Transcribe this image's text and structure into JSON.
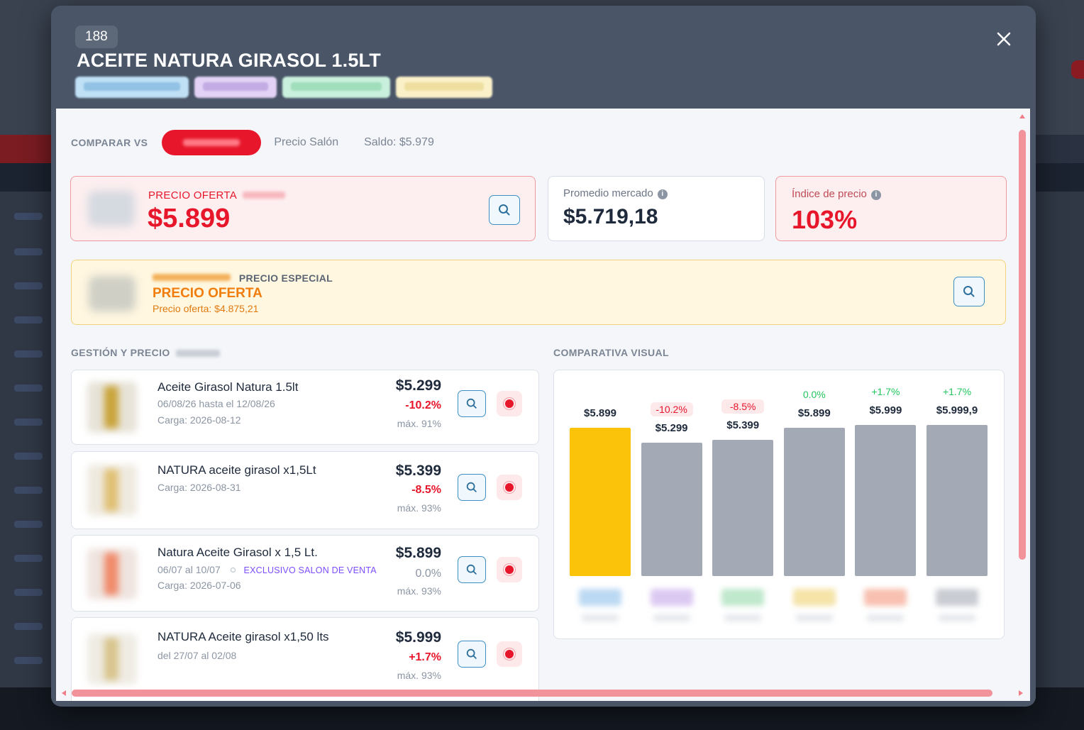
{
  "modal": {
    "id_badge": "188",
    "title": "ACEITE NATURA GIRASOL 1.5LT",
    "tag_colors": [
      "#bfe0f5",
      "#e3d2f5",
      "#c9f0dc",
      "#fbf1c9"
    ],
    "close_icon": "close-icon"
  },
  "compare": {
    "label": "COMPARAR VS",
    "options": [
      "Precio Salón",
      "Saldo: $5.979"
    ],
    "accent": "#e8162b"
  },
  "offer_card": {
    "label": "PRECIO OFERTA",
    "price": "$5.899",
    "icon": "search-icon"
  },
  "market_avg": {
    "label": "Promedio mercado",
    "value": "$5.719,18",
    "icon": "info-icon"
  },
  "price_index": {
    "label": "Índice de precio",
    "value": "103%",
    "icon": "info-icon"
  },
  "special": {
    "label": "PRECIO ESPECIAL",
    "title": "PRECIO OFERTA",
    "subtitle": "Precio oferta: $4.875,21",
    "icon": "search-icon"
  },
  "management": {
    "title": "GESTIÓN Y PRECIO",
    "items": [
      {
        "name": "Aceite Girasol Natura 1.5lt",
        "line1": "06/08/26 hasta el 12/08/26",
        "line2": "Carga: 2026-08-12",
        "price": "$5.299",
        "pct": "-10.2%",
        "max": "máx. 91%",
        "pct_color": "#e8162b",
        "thumb_color": "#c9a43a"
      },
      {
        "name": "NATURA aceite girasol x1,5Lt",
        "line1": "Carga: 2026-08-31",
        "price": "$5.399",
        "pct": "-8.5%",
        "max": "máx. 93%",
        "pct_color": "#e8162b",
        "thumb_color": "#e0c074"
      },
      {
        "name": "Natura Aceite Girasol x 1,5 Lt.",
        "line1": "06/07 al 10/07",
        "exclusive": "EXCLUSIVO SALON DE VENTA",
        "line2": "Carga: 2026-07-06",
        "price": "$5.899",
        "pct": "0.0%",
        "max": "máx. 93%",
        "pct_color": "#8b95a3",
        "thumb_color": "#f08a6a"
      },
      {
        "name": "NATURA Aceite girasol x1,50 lts",
        "line1": "del 27/07 al 02/08",
        "price": "$5.999",
        "pct": "+1.7%",
        "max": "máx. 93%",
        "pct_color": "#e8162b",
        "thumb_color": "#d8c48c"
      }
    ]
  },
  "comparativa": {
    "title": "COMPARATIVA VISUAL"
  },
  "chart_data": {
    "type": "bar",
    "categories": [
      "",
      "",
      "",
      "",
      "",
      ""
    ],
    "values": [
      5899,
      5299,
      5399,
      5899,
      5999,
      5999.9
    ],
    "value_labels": [
      "$5.899",
      "$5.299",
      "$5.399",
      "$5.899",
      "$5.999",
      "$5.999,9"
    ],
    "pct_labels": [
      "",
      "-10.2%",
      "-8.5%",
      "0.0%",
      "+1.7%",
      "+1.7%"
    ],
    "pct_colors": [
      "",
      "#e8162b",
      "#e8162b",
      "#22c55e",
      "#22c55e",
      "#22c55e"
    ],
    "bar_colors": [
      "#fcc30b",
      "#a3a9b5",
      "#a3a9b5",
      "#a3a9b5",
      "#a3a9b5",
      "#a3a9b5"
    ],
    "legend_colors": [
      "#bcd9f3",
      "#dcc9f2",
      "#bfe8cc",
      "#f5e3a8",
      "#f8c0b0",
      "#c9ccd3"
    ],
    "title": "",
    "xlabel": "",
    "ylabel": "",
    "grid": false
  }
}
